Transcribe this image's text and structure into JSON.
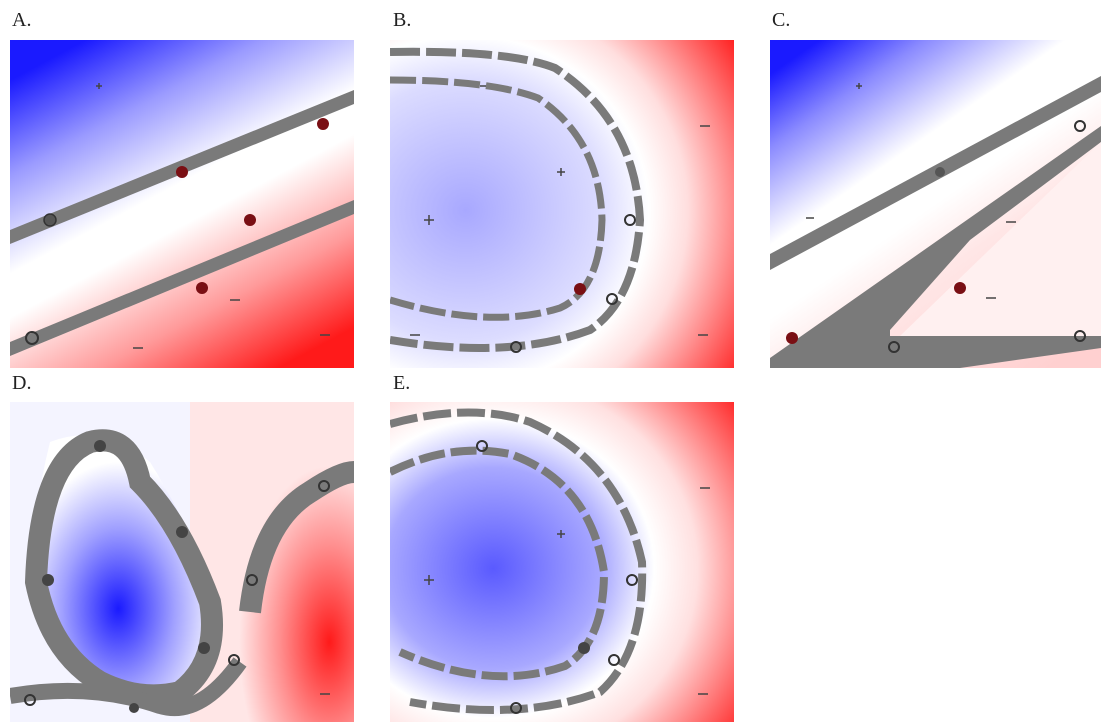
{
  "panels": [
    {
      "id": "A",
      "label": "A."
    },
    {
      "id": "B",
      "label": "B."
    },
    {
      "id": "C",
      "label": "C."
    },
    {
      "id": "D",
      "label": "D."
    },
    {
      "id": "E",
      "label": "E."
    }
  ],
  "colors": {
    "negative": "#1a1aff",
    "positive": "#ff1a1a",
    "neutral": "#ffffff",
    "margin_band": "#7a7a7a",
    "support_vector_filled": "#7a0f14",
    "support_vector_open": "#3c3c3c"
  }
}
